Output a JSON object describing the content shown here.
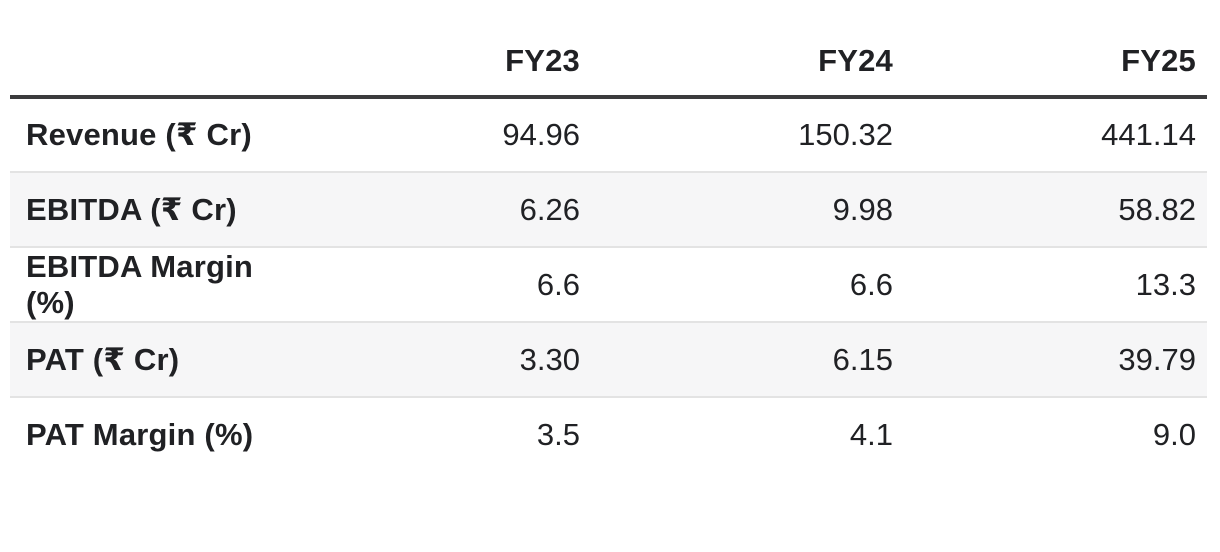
{
  "chart_data": {
    "type": "table",
    "columns": [
      "",
      "FY23",
      "FY24",
      "FY25"
    ],
    "rows": [
      {
        "label": "Revenue (₹ Cr)",
        "values": [
          "94.96",
          "150.32",
          "441.14"
        ]
      },
      {
        "label": "EBITDA (₹ Cr)",
        "values": [
          "6.26",
          "9.98",
          "58.82"
        ]
      },
      {
        "label": "EBITDA Margin (%)",
        "values": [
          "6.6",
          "6.6",
          "13.3"
        ]
      },
      {
        "label": "PAT (₹ Cr)",
        "values": [
          "3.30",
          "6.15",
          "39.79"
        ]
      },
      {
        "label": "PAT Margin (%)",
        "values": [
          "3.5",
          "4.1",
          "9.0"
        ]
      }
    ],
    "layout": {
      "striped_rows": "even",
      "header_rule": "thick-dark",
      "value_alignment": "right"
    }
  },
  "colors": {
    "text": "#202124",
    "header_border": "#3b3b3d",
    "row_stripe": "#f6f6f7",
    "row_divider": "#e3e3e3",
    "background": "#ffffff"
  }
}
